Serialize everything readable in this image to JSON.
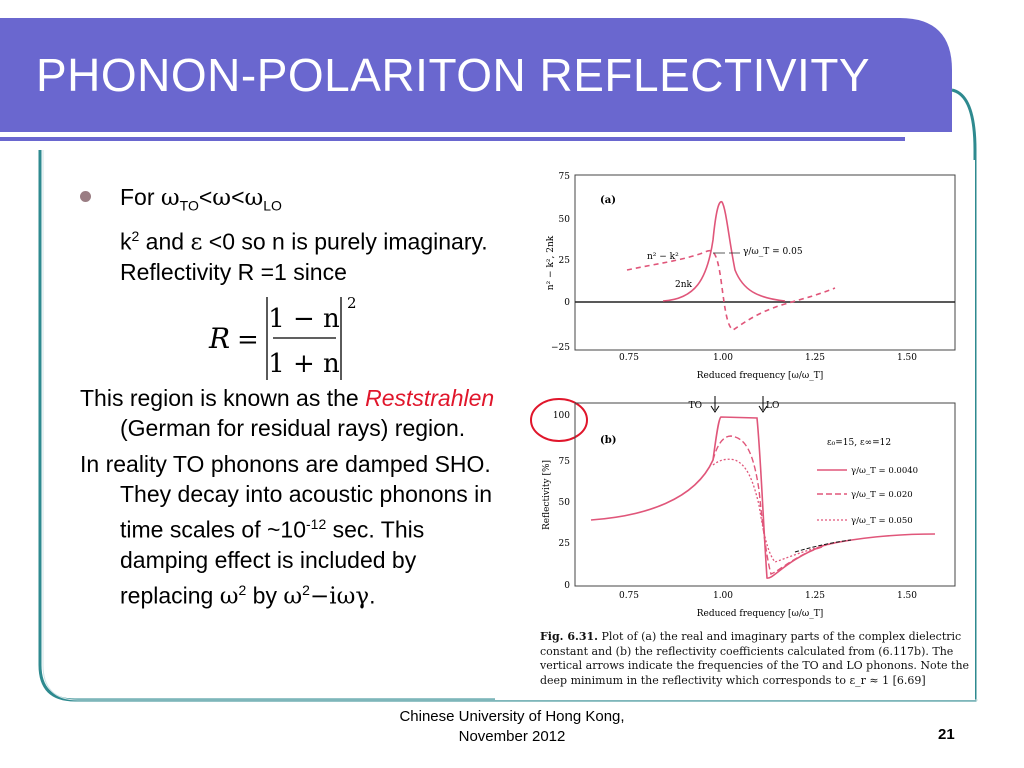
{
  "slide": {
    "title": "PHONON-POLARITON REFLECTIVITY",
    "footer_line1": "Chinese University of Hong Kong,",
    "footer_line2": "November 2012",
    "page_number": "21",
    "colors": {
      "title_bar": "#6a67cf",
      "accent_teal": "#2e8a8f",
      "highlight_red": "#e0162b"
    }
  },
  "body": {
    "for_label": "For ",
    "omega": "ω",
    "to_sub": "TO",
    "lt": "<",
    "lo_sub": "LO",
    "k2_prefix": "k",
    "sup2": "2",
    "k2_text1": " and ",
    "epsilon": "ε",
    "k2_text2": " <0 so n is purely imaginary. Reflectivity R =1 since",
    "region_text1": "This region is known as the ",
    "reststrahlen": "Reststrahlen",
    "region_text2": " (German for residual rays) region.",
    "reality_text1": "In reality TO phonons are damped SHO. They decay into acoustic phonons in time scales of ~10",
    "sup_neg12": "-12",
    "reality_text2": " sec. This damping effect is included by replacing ",
    "by_word": " by ",
    "minus_i_omega_gamma": "−iωγ",
    "period": "."
  },
  "formula": {
    "R": "R",
    "equals": "=",
    "numerator": "1 − n",
    "denominator": "1 + n",
    "exponent": "2"
  },
  "figure": {
    "caption_fig": "Fig. 6.31.",
    "caption_text": " Plot of (a) the real and imaginary parts of the complex dielectric constant and (b) the reflectivity coefficients calculated from (6.117b). The vertical arrows indicate the frequencies of the TO and LO phonons. Note the deep minimum in the reflectivity which corresponds to ε_r ≈ 1 [6.69]",
    "panel_a": {
      "label": "(a)",
      "ylabel": "n² − k², 2nk",
      "xlabel": "Reduced frequency [ω/ω_T]",
      "yticks": [
        "75",
        "50",
        "25",
        "0",
        "−25"
      ],
      "xticks": [
        "0.75",
        "1.00",
        "1.25",
        "1.50"
      ],
      "ann_n2k2": "n² − k²",
      "ann_gamma": "γ/ω_T = 0.05",
      "ann_2nk": "2nk"
    },
    "panel_b": {
      "label": "(b)",
      "ylabel": "Reflectivity [%]",
      "xlabel": "Reduced frequency [ω/ω_T]",
      "yticks": [
        "100",
        "75",
        "50",
        "25",
        "0"
      ],
      "xticks": [
        "0.75",
        "1.00",
        "1.25",
        "1.50"
      ],
      "to_label": "TO",
      "lo_label": "LO",
      "eps_text": "ε₀=15,  ε∞=12",
      "legend": [
        "γ/ω_T = 0.0040",
        "γ/ω_T = 0.020",
        "γ/ω_T = 0.050"
      ]
    }
  }
}
